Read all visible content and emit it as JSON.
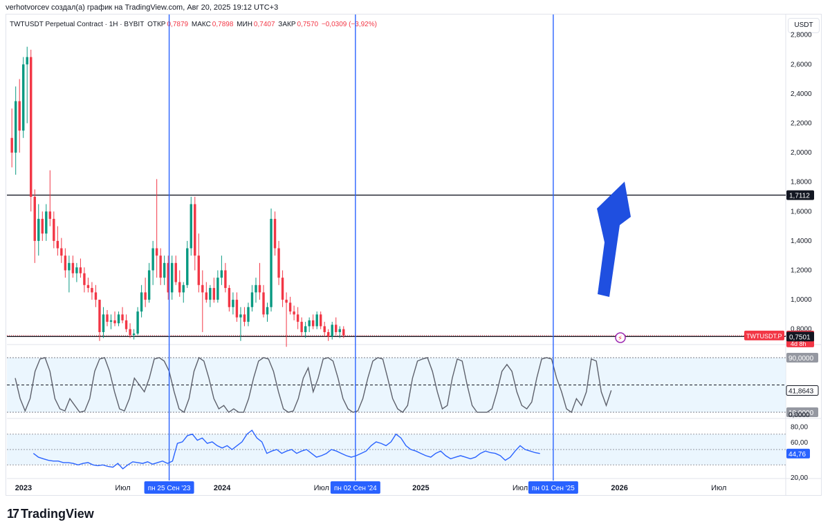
{
  "credit": "verhotvorcev создал(а) график на TradingView.com, Авг 20, 2025 19:12 UTC+3",
  "brand": "TradingView",
  "brand_logo": "tradingview-logo",
  "legend": {
    "symbol": "TWTUSDT Perpetual Contract · 1H · BYBIT",
    "open_label": "ОТКР",
    "open": "0,7879",
    "high_label": "МАКС",
    "high": "0,7898",
    "low_label": "МИН",
    "low": "0,7407",
    "close_label": "ЗАКР",
    "close": "0,7570",
    "change": "−0,0309 (−3,92%)"
  },
  "unit": "USDT",
  "colors": {
    "up": "#089981",
    "down": "#f23645",
    "marker": "#2962ff",
    "arrow": "#1f4fe0",
    "osc": "#5d606b",
    "rsi": "#2962ff"
  },
  "chart_data": [
    {
      "type": "candlestick",
      "ylim": [
        0.7,
        2.85
      ],
      "y_ticks": [
        "2,8000",
        "2,6000",
        "2,4000",
        "2,2000",
        "2,0000",
        "1,8000",
        "1,6000",
        "1,4000",
        "1,2000",
        "1,0000",
        "0,8000"
      ],
      "price_axis_labels": [
        {
          "text": "1,7112",
          "value": 1.7112,
          "kind": "line"
        },
        {
          "text": "TWTUSDT.P",
          "value": 0.757,
          "kind": "symbol"
        },
        {
          "text": "0,7570",
          "value": 0.757,
          "kind": "last"
        },
        {
          "text": "4d 8h",
          "value": 0.757,
          "kind": "countdown"
        },
        {
          "text": "0,7501",
          "value": 0.7501,
          "kind": "line"
        }
      ],
      "horizontal_lines": [
        1.7112,
        0.7501
      ],
      "x_labels": [
        "2023",
        "Июл",
        "2024",
        "Июл",
        "2025",
        "Июл",
        "2026",
        "Июл"
      ],
      "x_label_months": [
        0,
        6,
        12,
        18,
        24,
        30,
        36,
        42
      ],
      "x_range_months": [
        -1,
        46
      ],
      "vertical_markers": [
        {
          "label": "пн 25 Сен '23",
          "month": 8.8
        },
        {
          "label": "пн 02 Сен '24",
          "month": 20.05
        },
        {
          "label": "пн 01 Сен '25",
          "month": 32.0
        }
      ],
      "candles_start_month": -0.7,
      "candle_step_month": 0.2303,
      "candles": [
        [
          2.1,
          2.3,
          1.9,
          2.0
        ],
        [
          2.0,
          2.45,
          1.85,
          2.35
        ],
        [
          2.35,
          2.5,
          2.0,
          2.15
        ],
        [
          2.15,
          2.65,
          2.1,
          2.6
        ],
        [
          2.6,
          2.72,
          2.2,
          2.65
        ],
        [
          2.65,
          2.7,
          1.6,
          1.7
        ],
        [
          1.7,
          1.75,
          1.25,
          1.4
        ],
        [
          1.4,
          1.65,
          1.3,
          1.55
        ],
        [
          1.55,
          1.6,
          1.4,
          1.45
        ],
        [
          1.45,
          1.65,
          1.4,
          1.6
        ],
        [
          1.6,
          1.88,
          1.5,
          1.55
        ],
        [
          1.55,
          1.6,
          1.35,
          1.4
        ],
        [
          1.4,
          1.5,
          1.3,
          1.35
        ],
        [
          1.35,
          1.42,
          1.25,
          1.3
        ],
        [
          1.3,
          1.35,
          1.15,
          1.2
        ],
        [
          1.2,
          1.3,
          1.05,
          1.25
        ],
        [
          1.25,
          1.3,
          1.15,
          1.18
        ],
        [
          1.18,
          1.25,
          1.12,
          1.22
        ],
        [
          1.22,
          1.28,
          1.15,
          1.18
        ],
        [
          1.18,
          1.22,
          1.05,
          1.1
        ],
        [
          1.1,
          1.15,
          1.05,
          1.08
        ],
        [
          1.08,
          1.12,
          1.0,
          1.05
        ],
        [
          1.05,
          1.1,
          0.95,
          1.0
        ],
        [
          1.0,
          1.0,
          0.72,
          0.78
        ],
        [
          0.78,
          0.95,
          0.74,
          0.9
        ],
        [
          0.9,
          0.93,
          0.82,
          0.85
        ],
        [
          0.85,
          0.9,
          0.8,
          0.86
        ],
        [
          0.86,
          0.92,
          0.82,
          0.84
        ],
        [
          0.84,
          0.92,
          0.82,
          0.9
        ],
        [
          0.9,
          0.95,
          0.84,
          0.86
        ],
        [
          0.86,
          0.9,
          0.78,
          0.8
        ],
        [
          0.8,
          0.84,
          0.74,
          0.76
        ],
        [
          0.76,
          0.8,
          0.73,
          0.77
        ],
        [
          0.77,
          0.95,
          0.76,
          0.92
        ],
        [
          0.92,
          1.1,
          0.88,
          1.05
        ],
        [
          1.05,
          1.15,
          0.95,
          1.0
        ],
        [
          1.0,
          1.25,
          0.98,
          1.2
        ],
        [
          1.2,
          1.4,
          1.1,
          1.35
        ],
        [
          1.35,
          1.82,
          1.15,
          1.3
        ],
        [
          1.3,
          1.35,
          1.1,
          1.15
        ],
        [
          1.15,
          1.3,
          1.1,
          1.25
        ],
        [
          1.25,
          1.3,
          1.0,
          1.05
        ],
        [
          1.05,
          1.3,
          1.0,
          1.25
        ],
        [
          1.25,
          1.3,
          1.1,
          1.12
        ],
        [
          1.12,
          1.2,
          1.02,
          1.05
        ],
        [
          1.05,
          1.12,
          0.98,
          1.1
        ],
        [
          1.1,
          1.4,
          1.08,
          1.35
        ],
        [
          1.35,
          1.7,
          1.3,
          1.65
        ],
        [
          1.65,
          1.7,
          1.2,
          1.3
        ],
        [
          1.3,
          1.45,
          1.05,
          1.1
        ],
        [
          1.1,
          1.2,
          0.78,
          1.05
        ],
        [
          1.05,
          1.12,
          0.98,
          1.0
        ],
        [
          1.0,
          1.1,
          0.95,
          1.08
        ],
        [
          1.08,
          1.15,
          0.98,
          1.0
        ],
        [
          1.0,
          1.2,
          0.98,
          1.15
        ],
        [
          1.15,
          1.3,
          1.1,
          1.2
        ],
        [
          1.2,
          1.25,
          1.05,
          1.08
        ],
        [
          1.08,
          1.1,
          0.92,
          0.95
        ],
        [
          0.95,
          1.05,
          0.9,
          1.0
        ],
        [
          1.0,
          1.05,
          0.85,
          0.88
        ],
        [
          0.88,
          0.95,
          0.72,
          0.9
        ],
        [
          0.9,
          0.95,
          0.82,
          0.85
        ],
        [
          0.85,
          0.98,
          0.82,
          0.95
        ],
        [
          0.95,
          1.1,
          0.92,
          1.05
        ],
        [
          1.05,
          1.15,
          0.98,
          1.1
        ],
        [
          1.1,
          1.25,
          1.0,
          1.05
        ],
        [
          1.05,
          1.1,
          0.88,
          0.9
        ],
        [
          0.9,
          0.98,
          0.85,
          0.95
        ],
        [
          0.95,
          1.62,
          0.92,
          1.55
        ],
        [
          1.55,
          1.6,
          1.3,
          1.35
        ],
        [
          1.35,
          1.4,
          1.1,
          1.15
        ],
        [
          1.15,
          1.2,
          0.95,
          1.0
        ],
        [
          1.0,
          1.05,
          0.68,
          0.98
        ],
        [
          0.98,
          1.02,
          0.9,
          0.92
        ],
        [
          0.92,
          0.96,
          0.86,
          0.9
        ],
        [
          0.9,
          0.95,
          0.8,
          0.85
        ],
        [
          0.85,
          0.88,
          0.75,
          0.78
        ],
        [
          0.78,
          0.85,
          0.74,
          0.82
        ],
        [
          0.82,
          0.88,
          0.78,
          0.86
        ],
        [
          0.86,
          0.9,
          0.8,
          0.82
        ],
        [
          0.82,
          0.92,
          0.8,
          0.9
        ],
        [
          0.9,
          0.92,
          0.8,
          0.82
        ],
        [
          0.82,
          0.85,
          0.75,
          0.78
        ],
        [
          0.78,
          0.8,
          0.72,
          0.75
        ],
        [
          0.75,
          0.85,
          0.73,
          0.83
        ],
        [
          0.83,
          0.88,
          0.76,
          0.78
        ],
        [
          0.78,
          0.82,
          0.74,
          0.8
        ],
        [
          0.8,
          0.82,
          0.74,
          0.757
        ]
      ]
    },
    {
      "type": "line",
      "name": "",
      "ylim": [
        5,
        95
      ],
      "levels": [
        10,
        90
      ],
      "current_value": 41.8643,
      "axis_labels": [
        "90,0000",
        "41,8643",
        "10,0000",
        "0,0000"
      ],
      "x_start_month": -0.5,
      "x_step_month": 0.3,
      "values": [
        60,
        30,
        12,
        30,
        70,
        88,
        90,
        70,
        30,
        15,
        12,
        30,
        20,
        10,
        12,
        30,
        70,
        88,
        90,
        70,
        40,
        15,
        12,
        30,
        60,
        50,
        40,
        60,
        88,
        90,
        85,
        70,
        40,
        15,
        10,
        30,
        70,
        90,
        85,
        60,
        30,
        15,
        20,
        10,
        15,
        10,
        10,
        30,
        60,
        85,
        90,
        88,
        70,
        40,
        15,
        10,
        12,
        30,
        60,
        75,
        40,
        60,
        88,
        90,
        85,
        60,
        30,
        15,
        10,
        12,
        30,
        60,
        85,
        90,
        88,
        60,
        30,
        15,
        10,
        20,
        60,
        85,
        88,
        90,
        70,
        40,
        15,
        20,
        60,
        88,
        85,
        50,
        20,
        10,
        10,
        10,
        15,
        40,
        70,
        80,
        70,
        40,
        20,
        15,
        25,
        60,
        88,
        90,
        88,
        60,
        40,
        15,
        10,
        30,
        20,
        40,
        88,
        85,
        40,
        20,
        42
      ]
    },
    {
      "type": "line",
      "name": "",
      "ylim": [
        15,
        85
      ],
      "current_value": 44.76,
      "axis_labels": [
        "80,00",
        "60,00",
        "44,76",
        "20,00"
      ],
      "x_start_month": 0.6,
      "x_step_month": 0.3,
      "values": [
        45,
        40,
        38,
        36,
        35,
        35,
        33,
        33,
        32,
        30,
        32,
        33,
        30,
        29,
        30,
        28,
        27,
        32,
        25,
        30,
        34,
        33,
        32,
        34,
        31,
        33,
        35,
        32,
        35,
        58,
        60,
        68,
        70,
        62,
        65,
        58,
        60,
        55,
        52,
        55,
        50,
        55,
        60,
        70,
        75,
        65,
        60,
        45,
        48,
        50,
        45,
        48,
        50,
        45,
        48,
        50,
        45,
        40,
        42,
        45,
        50,
        48,
        45,
        42,
        40,
        42,
        45,
        48,
        55,
        60,
        58,
        55,
        60,
        70,
        65,
        55,
        50,
        48,
        45,
        42,
        40,
        45,
        48,
        42,
        38,
        40,
        42,
        40,
        38,
        40,
        45,
        48,
        46,
        45,
        42,
        36,
        40,
        48,
        55,
        50,
        48,
        46,
        44.76
      ]
    }
  ]
}
